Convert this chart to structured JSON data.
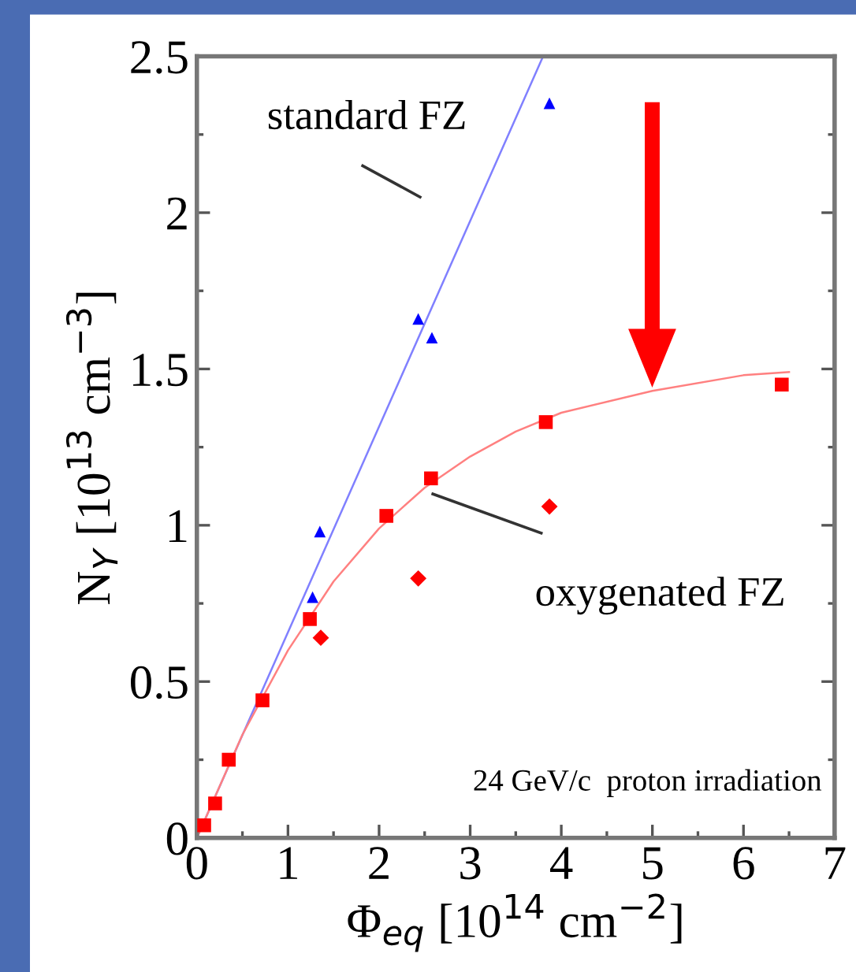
{
  "chart_data": {
    "type": "scatter",
    "xlabel": "Φ$_{eq}$ [10$^{14}$ cm$^{−2}$]",
    "ylabel": "N$_{Y}$ [10$^{13}$ cm$^{−3}$]",
    "xlim": [
      0,
      7
    ],
    "ylim": [
      0,
      2.5
    ],
    "xticks": [
      0,
      1,
      2,
      3,
      4,
      5,
      6,
      7
    ],
    "yticks": [
      0,
      0.5,
      1,
      1.5,
      2,
      2.5
    ],
    "grid": false,
    "legend": false,
    "annotations": [
      "standard FZ",
      "oxygenated FZ",
      "24 GeV/c  proton irradiation"
    ],
    "series": [
      {
        "type": "line",
        "color": "#8080ff",
        "marker": "none",
        "x": [
          0,
          3.8
        ],
        "values": [
          0,
          2.5
        ]
      },
      {
        "type": "line",
        "color": "#ff8080",
        "marker": "none",
        "x": [
          0,
          0.5,
          1,
          1.5,
          2,
          2.5,
          3,
          3.5,
          4,
          5,
          6,
          6.5
        ],
        "values": [
          0,
          0.33,
          0.6,
          0.82,
          0.99,
          1.12,
          1.22,
          1.3,
          1.36,
          1.43,
          1.48,
          1.49
        ]
      },
      {
        "color": "#0000ff",
        "marker": "triangle",
        "x": [
          1.27,
          1.35,
          2.43,
          2.58,
          3.87
        ],
        "values": [
          0.77,
          0.98,
          1.66,
          1.6,
          2.35
        ]
      },
      {
        "color": "#ff0000",
        "marker": "square",
        "x": [
          0.08,
          0.2,
          0.35,
          0.72,
          1.24,
          2.08,
          2.57,
          3.83,
          6.42
        ],
        "values": [
          0.04,
          0.11,
          0.25,
          0.44,
          0.7,
          1.03,
          1.15,
          1.33,
          1.45
        ]
      },
      {
        "color": "#ff0000",
        "marker": "diamond",
        "x": [
          1.36,
          2.43,
          3.87
        ],
        "values": [
          0.64,
          0.83,
          1.06
        ]
      }
    ]
  }
}
